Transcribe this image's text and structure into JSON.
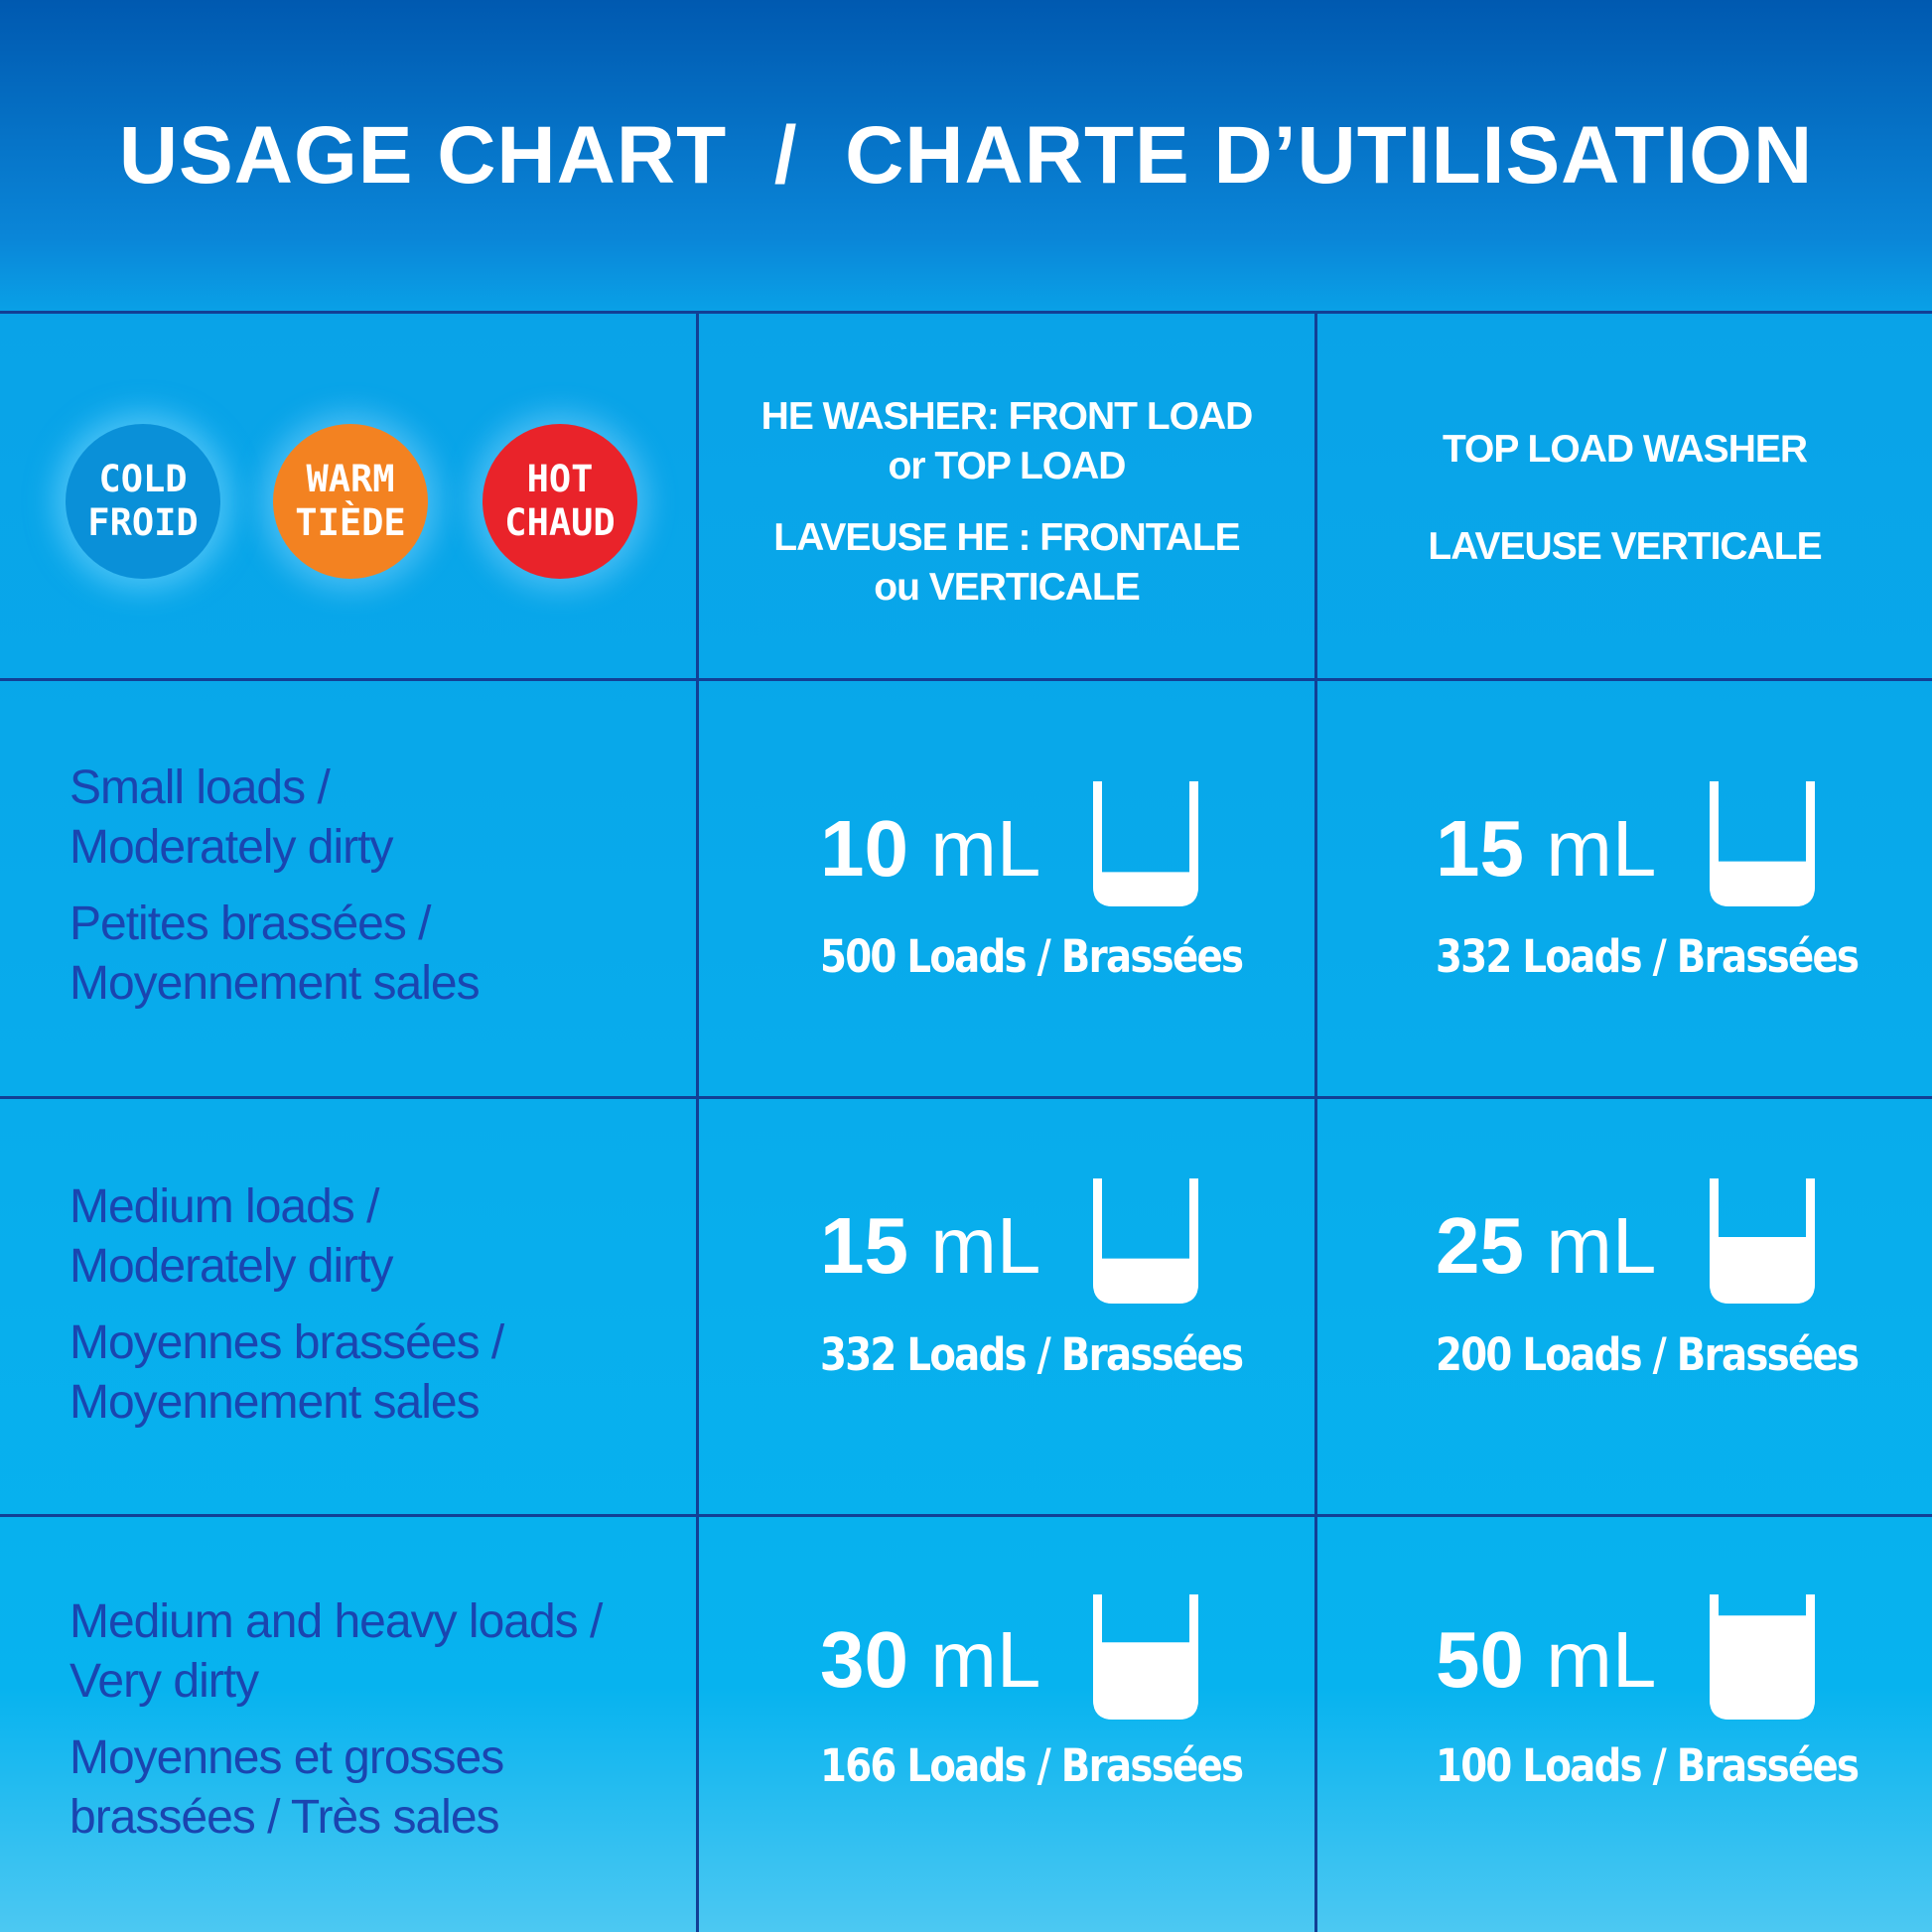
{
  "title": "USAGE CHART  /  CHARTE D’UTILISATION",
  "temperatures": [
    {
      "line1": "COLD",
      "line2": "FROID",
      "color": "#0a90d8",
      "icon": "cold-badge"
    },
    {
      "line1": "WARM",
      "line2": "TIÈDE",
      "color": "#f38221",
      "icon": "warm-badge"
    },
    {
      "line1": "HOT",
      "line2": "CHAUD",
      "color": "#e9232a",
      "icon": "hot-badge"
    }
  ],
  "columns": [
    {
      "en1": "HE WASHER: FRONT LOAD",
      "en2": "or TOP LOAD",
      "fr1": "LAVEUSE HE : FRONTALE",
      "fr2": "ou VERTICALE"
    },
    {
      "en1": "TOP LOAD WASHER",
      "fr1": "LAVEUSE VERTICALE"
    }
  ],
  "rows": [
    {
      "en1": "Small loads /",
      "en2": "Moderately dirty",
      "fr1": "Petites brassées /",
      "fr2": "Moyennement sales",
      "cells": [
        {
          "amount": "10",
          "unit": "mL",
          "loads": "500 Loads / Brassées",
          "fill": 0.2
        },
        {
          "amount": "15",
          "unit": "mL",
          "loads": "332 Loads / Brassées",
          "fill": 0.3
        }
      ]
    },
    {
      "en1": "Medium loads /",
      "en2": "Moderately dirty",
      "fr1": "Moyennes brassées /",
      "fr2": "Moyennement sales",
      "cells": [
        {
          "amount": "15",
          "unit": "mL",
          "loads": "332 Loads / Brassées",
          "fill": 0.3
        },
        {
          "amount": "25",
          "unit": "mL",
          "loads": "200 Loads / Brassées",
          "fill": 0.5
        }
      ]
    },
    {
      "en1": "Medium and heavy loads /",
      "en2": "Very dirty",
      "fr1": "Moyennes et grosses",
      "fr2": "brassées / Très sales",
      "cells": [
        {
          "amount": "30",
          "unit": "mL",
          "loads": "166 Loads / Brassées",
          "fill": 0.6
        },
        {
          "amount": "50",
          "unit": "mL",
          "loads": "100 Loads / Brassées",
          "fill": 0.85
        }
      ]
    }
  ]
}
